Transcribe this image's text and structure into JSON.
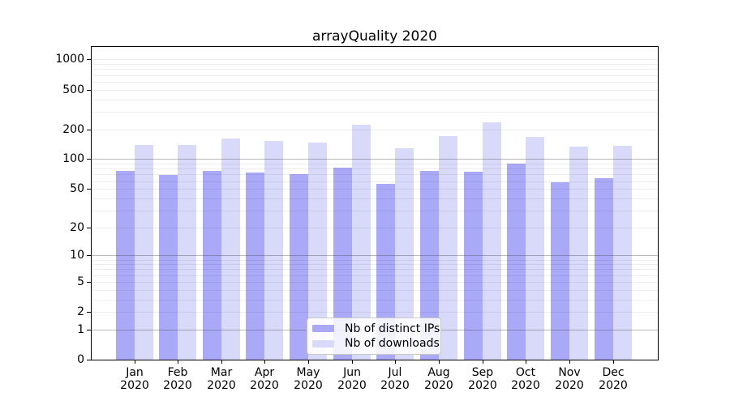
{
  "title": "arrayQuality 2020",
  "chart_data": {
    "type": "bar",
    "title": "arrayQuality 2020",
    "categories": [
      "Jan 2020",
      "Feb 2020",
      "Mar 2020",
      "Apr 2020",
      "May 2020",
      "Jun 2020",
      "Jul 2020",
      "Aug 2020",
      "Sep 2020",
      "Oct 2020",
      "Nov 2020",
      "Dec 2020"
    ],
    "series": [
      {
        "name": "Nb of distinct IPs",
        "color": "#a9a9f8",
        "values": [
          76,
          69,
          76,
          73,
          71,
          82,
          56,
          76,
          75,
          90,
          58,
          64
        ]
      },
      {
        "name": "Nb of downloads",
        "color": "#d9d9fa",
        "values": [
          140,
          140,
          163,
          152,
          148,
          222,
          130,
          170,
          234,
          167,
          133,
          136
        ]
      }
    ],
    "y_ticks": [
      0,
      1,
      2,
      5,
      10,
      20,
      50,
      100,
      200,
      500,
      1000
    ],
    "major_grid_values": [
      1,
      10,
      100
    ],
    "scale": "log10(value+1)",
    "ylim": [
      0,
      1320
    ],
    "xlabel": "",
    "ylabel": "",
    "grid": "horizontal",
    "legend_position": "lower-center"
  }
}
